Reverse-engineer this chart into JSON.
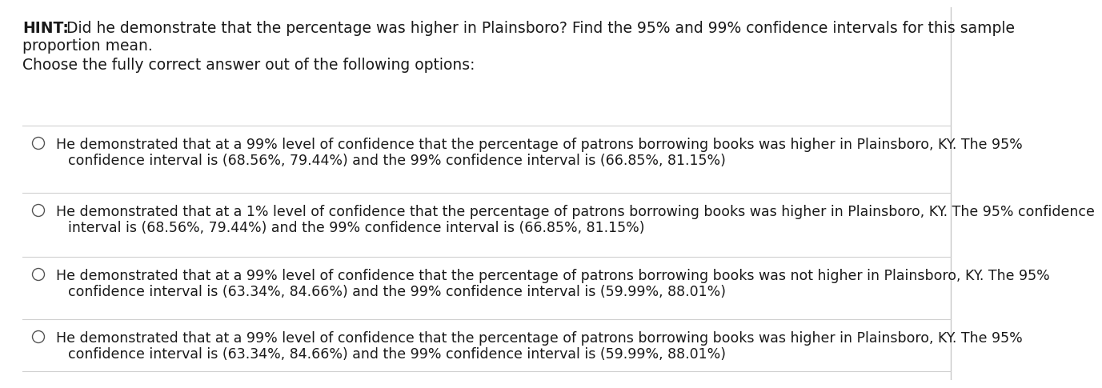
{
  "background_color": "#ffffff",
  "hint_bold": "HINT:",
  "hint_rest": " Did he demonstrate that the percentage was higher in Plainsboro? Find the 95% and 99% confidence intervals for this sample proportion mean.",
  "hint_line2": "proportion mean.",
  "choose_text": "Choose the fully correct answer out of the following options:",
  "options": [
    [
      "He demonstrated that at a 99% level of confidence that the percentage of patrons borrowing books was higher in Plainsboro, KY. The 95%",
      "confidence interval is (68.56%, 79.44%) and the 99% confidence interval is (66.85%, 81.15%)"
    ],
    [
      "He demonstrated that at a 1% level of confidence that the percentage of patrons borrowing books was higher in Plainsboro, KY. The 95% confidence",
      "interval is (68.56%, 79.44%) and the 99% confidence interval is (66.85%, 81.15%)"
    ],
    [
      "He demonstrated that at a 99% level of confidence that the percentage of patrons borrowing books was not higher in Plainsboro, KY. The 95%",
      "confidence interval is (63.34%, 84.66%) and the 99% confidence interval is (59.99%, 88.01%)"
    ],
    [
      "He demonstrated that at a 99% level of confidence that the percentage of patrons borrowing books was higher in Plainsboro, KY. The 95%",
      "confidence interval is (63.34%, 84.66%) and the 99% confidence interval is (59.99%, 88.01%)"
    ]
  ],
  "text_color": "#1a1a1a",
  "line_color": "#d0d0d0",
  "circle_color": "#555555",
  "right_border_color": "#c8c8c8",
  "font_size_hint": 13.5,
  "font_size_body": 12.5,
  "font_size_choose": 13.5
}
